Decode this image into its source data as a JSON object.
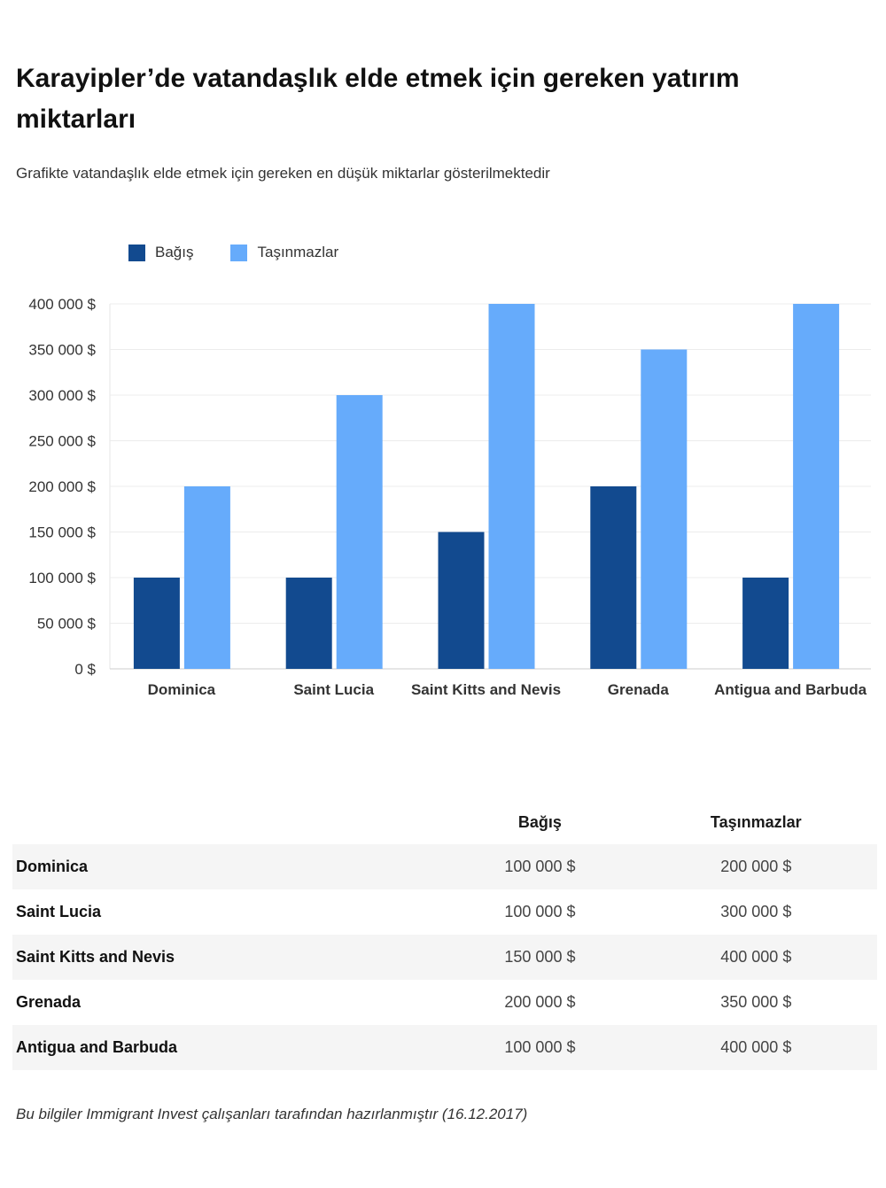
{
  "title": "Karayipler’de vatandaşlık elde etmek için gereken yatırım miktarları",
  "subtitle": "Grafikte vatandaşlık elde etmek için gereken en düşük miktarlar gösterilmektedir",
  "footer": "Bu bilgiler Immigrant Invest çalışanları tarafından hazırlanmıştır (16.12.2017)",
  "colors": {
    "bagis": "#124a8f",
    "tasinmazlar": "#66abfb"
  },
  "chart_data": {
    "type": "bar",
    "categories": [
      "Dominica",
      "Saint Lucia",
      "Saint Kitts and Nevis",
      "Grenada",
      "Antigua and Barbuda"
    ],
    "series": [
      {
        "name": "Bağış",
        "values": [
          100000,
          100000,
          150000,
          200000,
          100000
        ]
      },
      {
        "name": "Taşınmazlar",
        "values": [
          200000,
          300000,
          400000,
          350000,
          400000
        ]
      }
    ],
    "yticks": [
      "0 $",
      "50 000 $",
      "100 000 $",
      "150 000 $",
      "200 000 $",
      "250 000 $",
      "300 000 $",
      "350 000 $",
      "400 000 $"
    ],
    "ylim": [
      0,
      400000
    ],
    "grid": true,
    "legend": "top-left"
  },
  "table": {
    "headers": [
      "",
      "Bağış",
      "Taşınmazlar"
    ],
    "rows": [
      [
        "Dominica",
        "100 000 $",
        "200 000 $"
      ],
      [
        "Saint Lucia",
        "100 000 $",
        "300 000 $"
      ],
      [
        "Saint Kitts and Nevis",
        "150 000 $",
        "400 000 $"
      ],
      [
        "Grenada",
        "200 000 $",
        "350 000 $"
      ],
      [
        "Antigua and Barbuda",
        "100 000 $",
        "400 000 $"
      ]
    ]
  }
}
